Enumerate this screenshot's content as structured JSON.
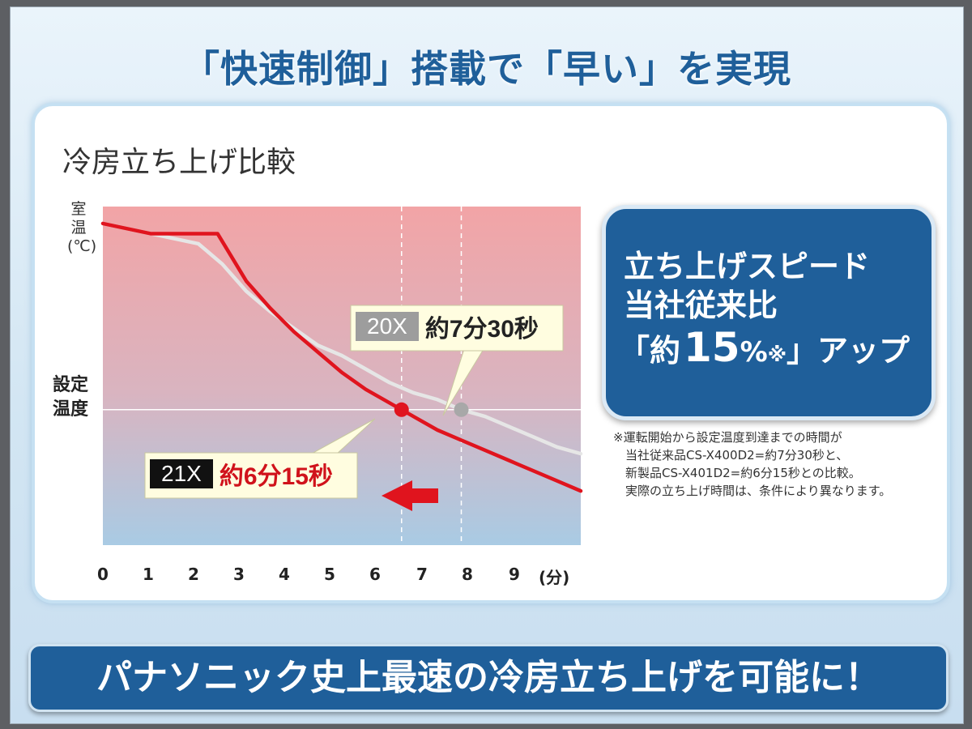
{
  "title": "「快速制御」搭載で「早い」を実現",
  "chart_data": {
    "type": "line",
    "title": "冷房立ち上げ比較",
    "ylabel": "室温(℃)",
    "setpoint_label": "設定温度",
    "x_unit": "(分)",
    "x_ticks": [
      "0",
      "1",
      "2",
      "3",
      "4",
      "5",
      "6",
      "7",
      "8",
      "9"
    ],
    "xlim": [
      0,
      10
    ],
    "ylim": [
      0,
      10
    ],
    "setpoint": 4.0,
    "series": [
      {
        "name": "20X",
        "color": "#e6e6e6",
        "x": [
          0,
          1,
          2,
          2.5,
          3,
          3.5,
          4,
          4.5,
          5,
          5.5,
          6,
          6.5,
          7,
          7.5,
          8,
          8.5,
          9,
          9.5,
          10
        ],
        "y": [
          9.5,
          9.2,
          8.9,
          8.3,
          7.5,
          6.9,
          6.4,
          5.9,
          5.6,
          5.2,
          4.8,
          4.5,
          4.3,
          4.0,
          3.8,
          3.5,
          3.2,
          2.9,
          2.7
        ]
      },
      {
        "name": "21X",
        "color": "#e0141e",
        "x": [
          0,
          1,
          2,
          2.4,
          3,
          3.5,
          4,
          4.5,
          5,
          5.5,
          6,
          6.25,
          6.5,
          7,
          7.5,
          8,
          8.5,
          9,
          9.5,
          10
        ],
        "y": [
          9.5,
          9.2,
          9.2,
          9.2,
          7.8,
          7.0,
          6.3,
          5.7,
          5.1,
          4.6,
          4.2,
          4.0,
          3.8,
          3.4,
          3.1,
          2.8,
          2.5,
          2.2,
          1.9,
          1.6
        ]
      }
    ],
    "markers": [
      {
        "series": "21X",
        "x": 6.25,
        "y": 4.0,
        "color": "#e0141e"
      },
      {
        "series": "20X",
        "x": 7.5,
        "y": 4.0,
        "color": "#a8a8a8"
      }
    ],
    "reference_lines_x": [
      6.25,
      7.5
    ],
    "annotations": [
      {
        "model": "20X",
        "text": "約7分30秒"
      },
      {
        "model": "21X",
        "text": "約6分15秒"
      }
    ],
    "grid": false,
    "background": "gradient red (top) to blue (bottom)"
  },
  "speed_box": {
    "line1": "立ち上げスピード",
    "line2": "当社従来比",
    "prefix": "「約",
    "number": "15",
    "unit": "%",
    "mark": "※",
    "suffix": "」アップ"
  },
  "footnote": "※運転開始から設定温度到達までの時間が\n　当社従来品CS-X400D2=約7分30秒と、\n　新製品CS-X401D2=約6分15秒との比較。\n　実際の立ち上げ時間は、条件により異なります。",
  "banner": "パナソニック史上最速の冷房立ち上げを可能に！"
}
